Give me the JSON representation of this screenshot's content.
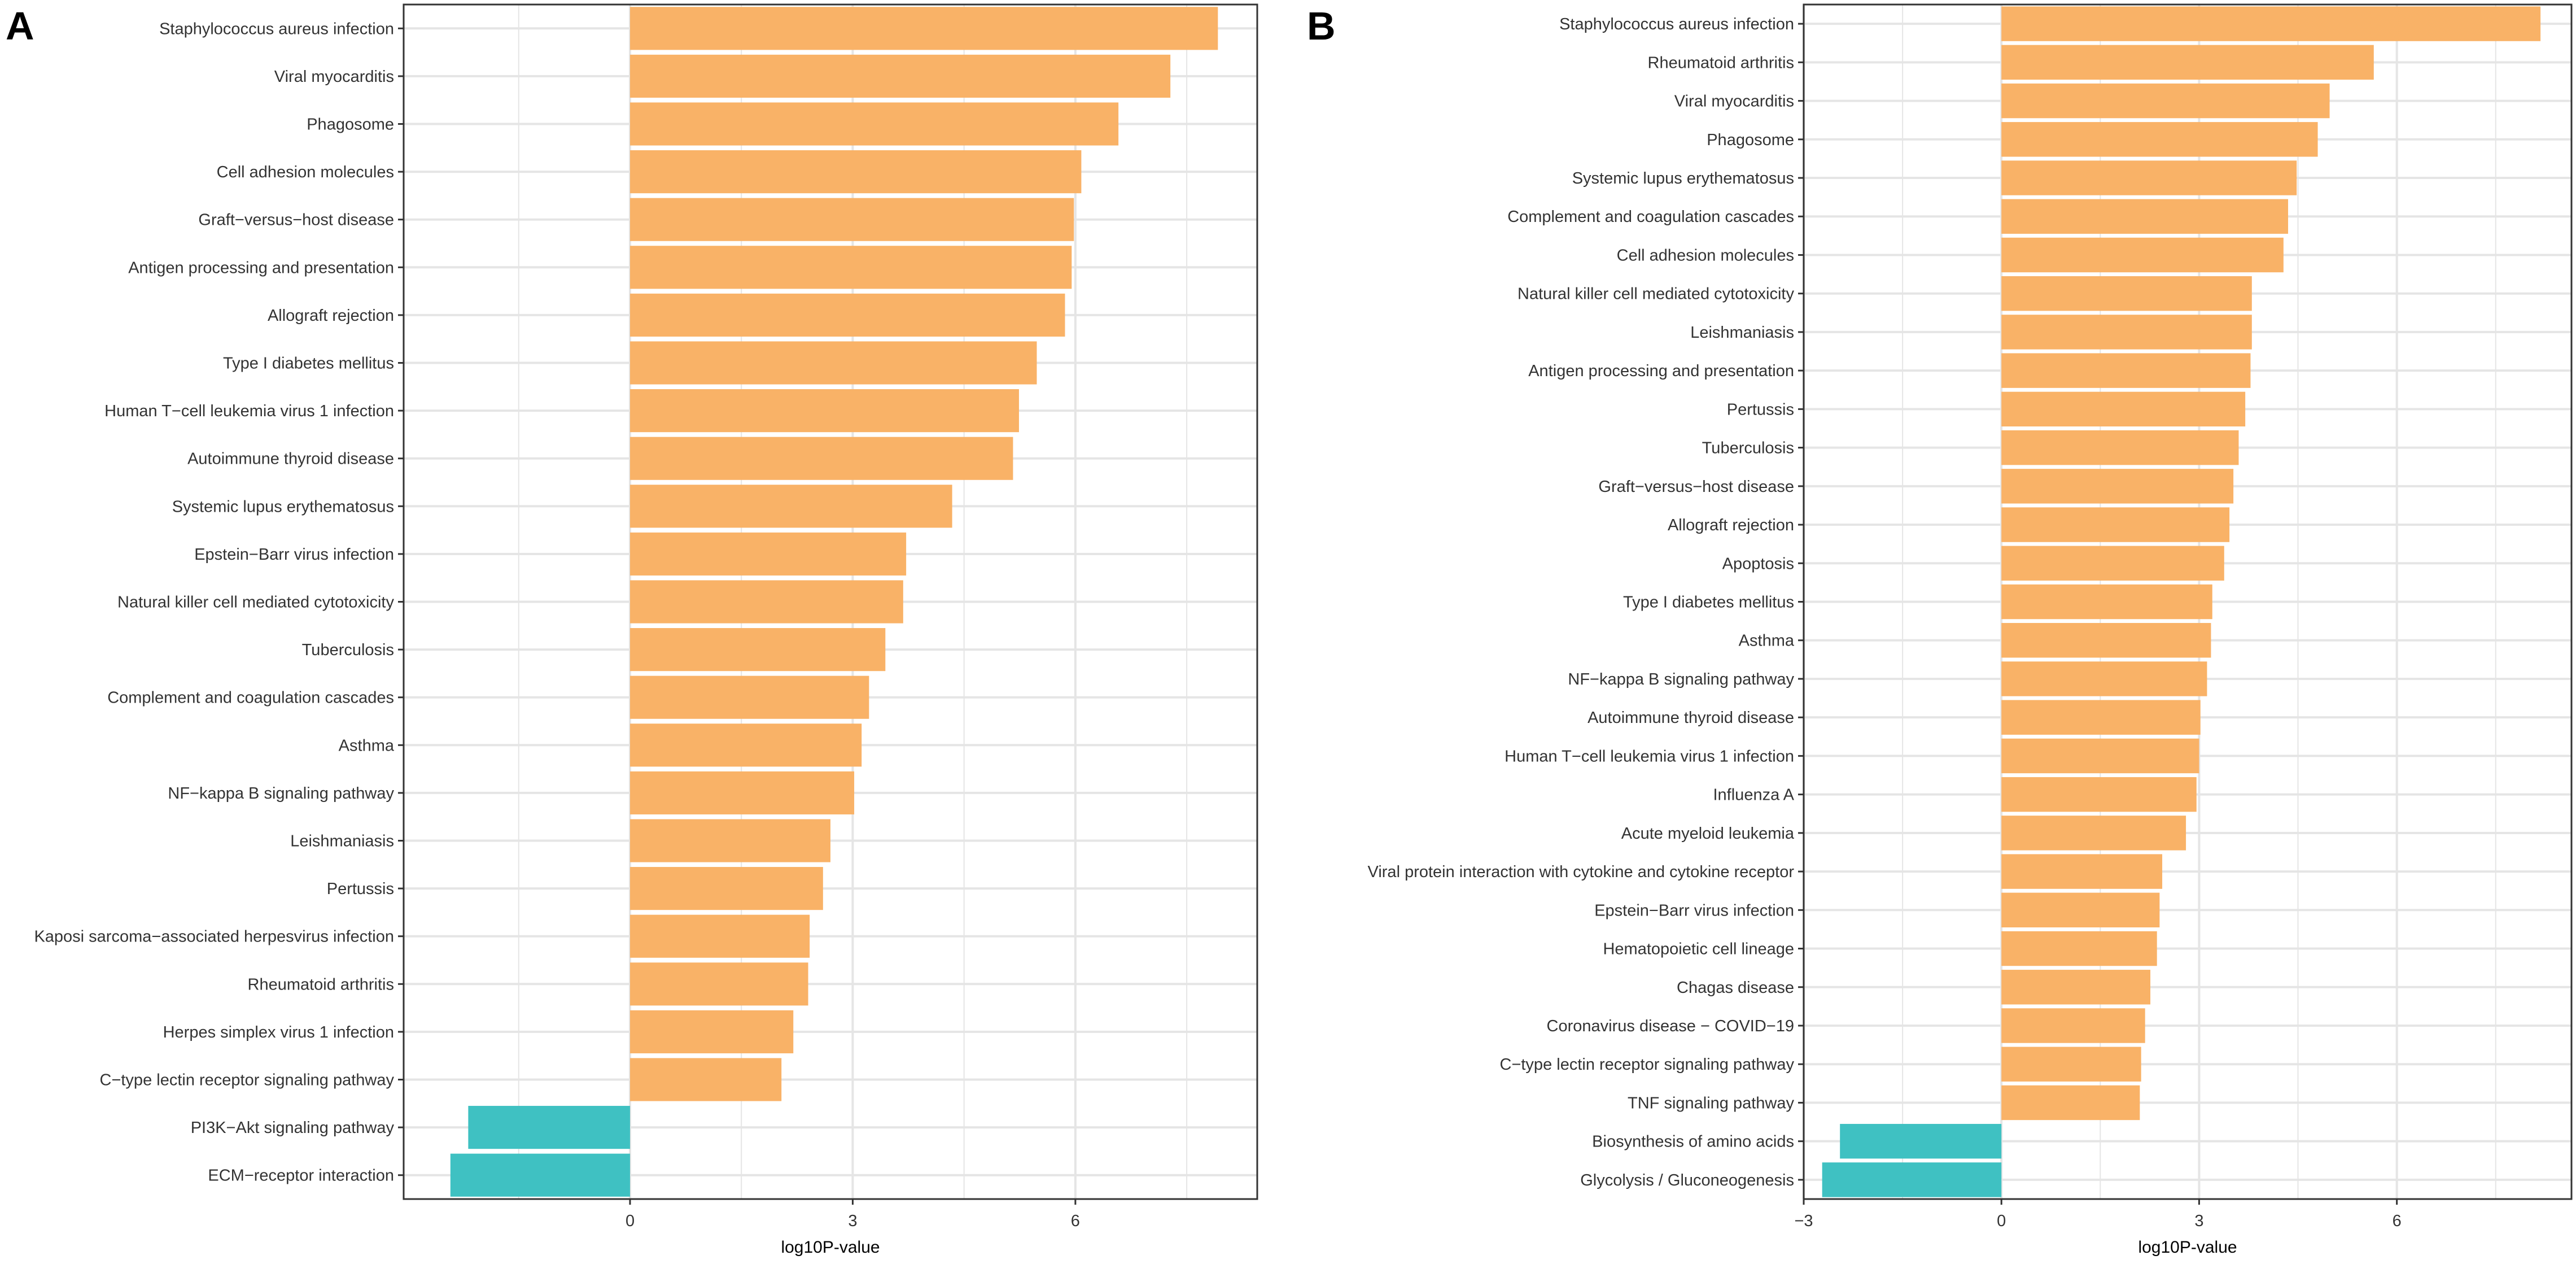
{
  "colors": {
    "positive": "#F9B267",
    "negative": "#3FC1C2",
    "grid": "#E5E5E5",
    "panel_border": "#333333"
  },
  "chart_data": [
    {
      "panel_label": "A",
      "type": "bar",
      "orientation": "horizontal",
      "xlabel": "log10P-value",
      "xticks": [
        0,
        3,
        6
      ],
      "xlim": [
        -3.05,
        8.45
      ],
      "categories": [
        "Staphylococcus aureus infection",
        "Viral myocarditis",
        "Phagosome",
        "Cell adhesion molecules",
        "Graft−versus−host disease",
        "Antigen processing and presentation",
        "Allograft rejection",
        "Type I diabetes mellitus",
        "Human T−cell leukemia virus 1 infection",
        "Autoimmune thyroid disease",
        "Systemic lupus erythematosus",
        "Epstein−Barr virus infection",
        "Natural killer cell mediated cytotoxicity",
        "Tuberculosis",
        "Complement and coagulation cascades",
        "Asthma",
        "NF−kappa B signaling pathway",
        "Leishmaniasis",
        "Pertussis",
        "Kaposi sarcoma−associated herpesvirus infection",
        "Rheumatoid arthritis",
        "Herpes simplex virus 1 infection",
        "C−type lectin receptor signaling pathway",
        "PI3K−Akt signaling pathway",
        "ECM−receptor interaction"
      ],
      "values": [
        7.92,
        7.28,
        6.58,
        6.08,
        5.98,
        5.95,
        5.86,
        5.48,
        5.24,
        5.16,
        4.34,
        3.72,
        3.68,
        3.44,
        3.22,
        3.12,
        3.02,
        2.7,
        2.6,
        2.42,
        2.4,
        2.2,
        2.04,
        -2.18,
        -2.42
      ]
    },
    {
      "panel_label": "B",
      "type": "bar",
      "orientation": "horizontal",
      "xlabel": "log10P-value",
      "xticks": [
        -3,
        0,
        3,
        6
      ],
      "xlim": [
        -3.0,
        8.65
      ],
      "categories": [
        "Staphylococcus aureus infection",
        "Rheumatoid arthritis",
        "Viral myocarditis",
        "Phagosome",
        "Systemic lupus erythematosus",
        "Complement and coagulation cascades",
        "Cell adhesion molecules",
        "Natural killer cell mediated cytotoxicity",
        "Leishmaniasis",
        "Antigen processing and presentation",
        "Pertussis",
        "Tuberculosis",
        "Graft−versus−host disease",
        "Allograft rejection",
        "Apoptosis",
        "Type I diabetes mellitus",
        "Asthma",
        "NF−kappa B signaling pathway",
        "Autoimmune thyroid disease",
        "Human T−cell leukemia virus 1 infection",
        "Influenza A",
        "Acute myeloid leukemia",
        "Viral protein interaction with cytokine and cytokine receptor",
        "Epstein−Barr virus infection",
        "Hematopoietic cell lineage",
        "Chagas disease",
        "Coronavirus disease − COVID−19",
        "C−type lectin receptor signaling pathway",
        "TNF signaling pathway",
        "Biosynthesis of amino acids",
        "Glycolysis / Gluconeogenesis"
      ],
      "values": [
        8.18,
        5.65,
        4.98,
        4.8,
        4.48,
        4.35,
        4.28,
        3.8,
        3.8,
        3.78,
        3.7,
        3.6,
        3.52,
        3.46,
        3.38,
        3.2,
        3.18,
        3.12,
        3.02,
        3.0,
        2.96,
        2.8,
        2.44,
        2.4,
        2.36,
        2.26,
        2.18,
        2.12,
        2.1,
        -2.45,
        -2.72
      ]
    }
  ]
}
